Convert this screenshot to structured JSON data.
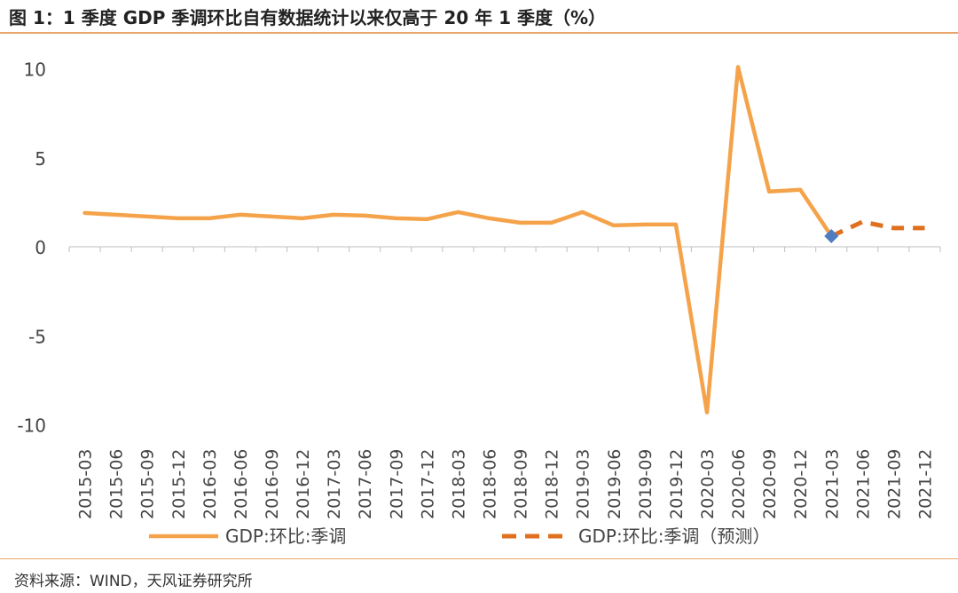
{
  "title": "图 1：1 季度 GDP 季调环比自有数据统计以来仅高于 20 年 1 季度（%）",
  "source": "资料来源：WIND，天风证券研究所",
  "chart_data": {
    "type": "line",
    "categories": [
      "2015-03",
      "2015-06",
      "2015-09",
      "2015-12",
      "2016-03",
      "2016-06",
      "2016-09",
      "2016-12",
      "2017-03",
      "2017-06",
      "2017-09",
      "2017-12",
      "2018-03",
      "2018-06",
      "2018-09",
      "2018-12",
      "2019-03",
      "2019-06",
      "2019-09",
      "2019-12",
      "2020-03",
      "2020-06",
      "2020-09",
      "2020-12",
      "2021-03",
      "2021-06",
      "2021-09",
      "2021-12"
    ],
    "yticks": [
      10,
      5,
      0,
      -5,
      -10
    ],
    "ylim": [
      -10,
      10
    ],
    "series": [
      {
        "name": "GDP:环比:季调",
        "color": "#f5a34b",
        "style": "solid",
        "values": [
          1.9,
          1.8,
          1.7,
          1.6,
          1.6,
          1.8,
          1.7,
          1.6,
          1.8,
          1.75,
          1.6,
          1.55,
          1.95,
          1.6,
          1.35,
          1.35,
          1.95,
          1.2,
          1.25,
          1.25,
          -9.3,
          10.1,
          3.1,
          3.2,
          0.6,
          null,
          null,
          null
        ]
      },
      {
        "name": "GDP:环比:季调（预测）",
        "color": "#e07020",
        "style": "dashed",
        "values": [
          null,
          null,
          null,
          null,
          null,
          null,
          null,
          null,
          null,
          null,
          null,
          null,
          null,
          null,
          null,
          null,
          null,
          null,
          null,
          null,
          null,
          null,
          null,
          null,
          0.6,
          1.4,
          1.05,
          1.05
        ]
      }
    ],
    "marker": {
      "category": "2021-03",
      "value": 0.6,
      "color": "#4f7dc0",
      "shape": "diamond"
    },
    "legend_position": "bottom"
  }
}
